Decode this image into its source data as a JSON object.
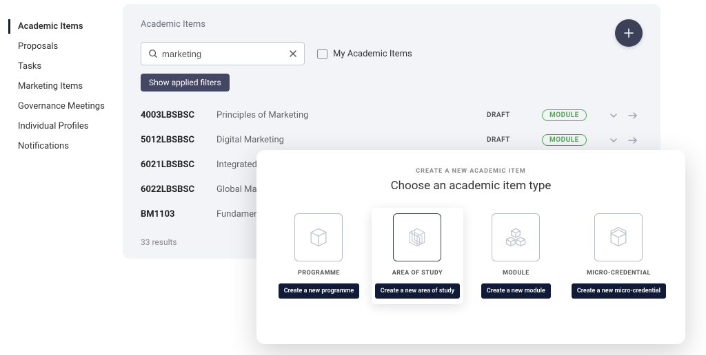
{
  "sidebar": {
    "items": [
      {
        "label": "Academic Items",
        "active": true
      },
      {
        "label": "Proposals"
      },
      {
        "label": "Tasks"
      },
      {
        "label": "Marketing Items"
      },
      {
        "label": "Governance Meetings"
      },
      {
        "label": "Individual Profiles"
      },
      {
        "label": "Notifications"
      }
    ]
  },
  "page": {
    "title": "Academic Items"
  },
  "search": {
    "value": "marketing"
  },
  "checkbox": {
    "label": "My Academic Items"
  },
  "filters": {
    "button": "Show applied filters"
  },
  "table": {
    "rows": [
      {
        "code": "4003LBSBSC",
        "name": "Principles of Marketing",
        "status": "DRAFT",
        "badge": "MODULE",
        "expandable": true
      },
      {
        "code": "5012LBSBSC",
        "name": "Digital Marketing",
        "status": "DRAFT",
        "badge": "MODULE",
        "expandable": true
      },
      {
        "code": "6021LBSBSC",
        "name": "Integrated Marketing",
        "status": "",
        "badge": "",
        "expandable": false
      },
      {
        "code": "6022LBSBSC",
        "name": "Global Marketing",
        "status": "",
        "badge": "",
        "expandable": false
      },
      {
        "code": "BM1103",
        "name": "Fundamentals of",
        "status": "",
        "badge": "",
        "expandable": false
      }
    ],
    "results_text": "33 results"
  },
  "modal": {
    "eyebrow": "CREATE A NEW ACADEMIC ITEM",
    "title": "Choose an academic item type",
    "types": [
      {
        "label": "PROGRAMME",
        "button": "Create a new programme",
        "selected": false
      },
      {
        "label": "AREA OF STUDY",
        "button": "Create a new area of study",
        "selected": true
      },
      {
        "label": "MODULE",
        "button": "Create a new module",
        "selected": false
      },
      {
        "label": "MICRO-CREDENTIAL",
        "button": "Create a new micro-credential",
        "selected": false
      }
    ]
  },
  "colors": {
    "panel_bg": "#f3f4f7",
    "fab_bg": "#3c4158",
    "badge_green": "#4caf50",
    "modal_btn": "#0f1b38"
  }
}
